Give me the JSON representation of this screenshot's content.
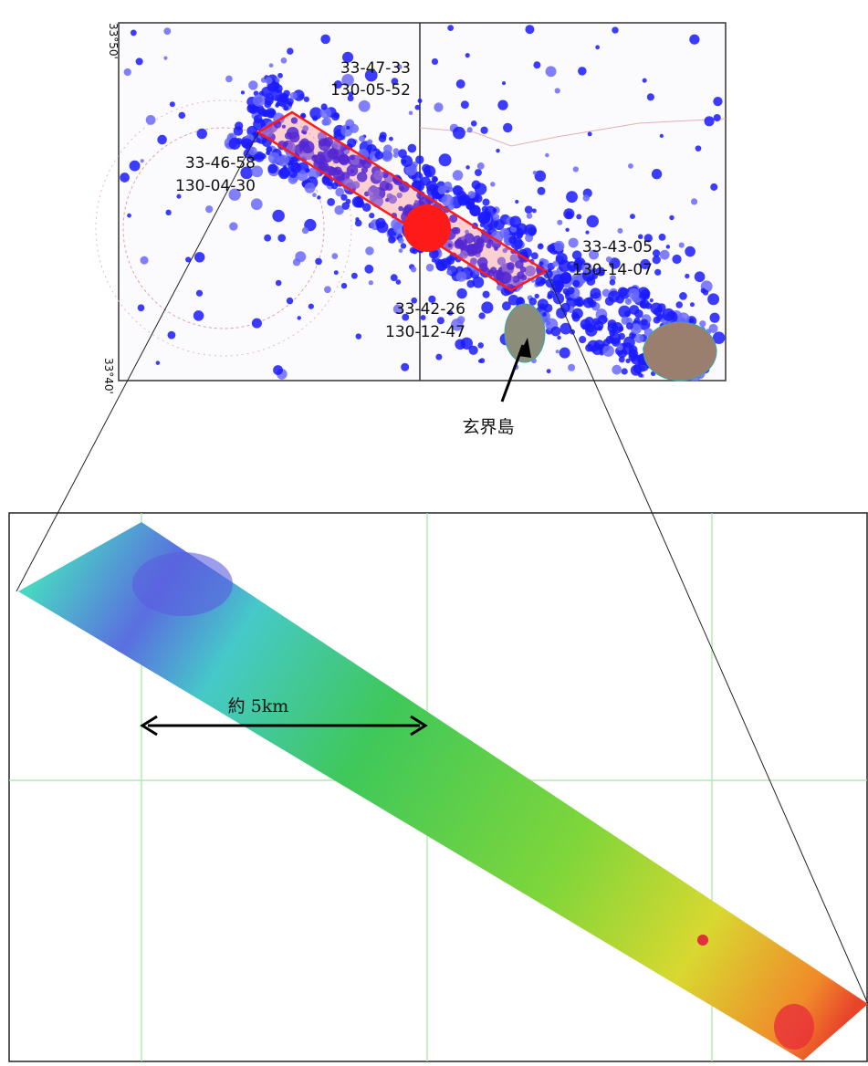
{
  "map": {
    "lat_top": "33°50'",
    "lat_bottom": "33°40'",
    "points": [
      {
        "lat": "33-47-33",
        "lon": "130-05-52"
      },
      {
        "lat": "33-46-58",
        "lon": "130-04-30"
      },
      {
        "lat": "33-43-05",
        "lon": "130-14-07"
      },
      {
        "lat": "33-42-26",
        "lon": "130-12-47"
      }
    ],
    "island": "玄界島"
  },
  "detail": {
    "scale": "約 5km"
  }
}
